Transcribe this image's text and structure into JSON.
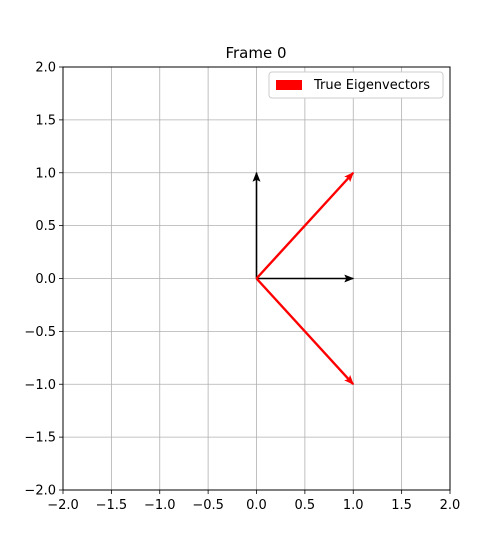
{
  "chart_data": {
    "type": "vector_field",
    "title": "Frame 0",
    "xlabel": "",
    "ylabel": "",
    "xlim": [
      -2.0,
      2.0
    ],
    "ylim": [
      -2.0,
      2.0
    ],
    "xticks": [
      "−2.0",
      "−1.5",
      "−1.0",
      "−0.5",
      "0.0",
      "0.5",
      "1.0",
      "1.5",
      "2.0"
    ],
    "yticks": [
      "−2.0",
      "−1.5",
      "−1.0",
      "−0.5",
      "0.0",
      "0.5",
      "1.0",
      "1.5",
      "2.0"
    ],
    "xtick_values": [
      -2.0,
      -1.5,
      -1.0,
      -0.5,
      0.0,
      0.5,
      1.0,
      1.5,
      2.0
    ],
    "ytick_values": [
      -2.0,
      -1.5,
      -1.0,
      -0.5,
      0.0,
      0.5,
      1.0,
      1.5,
      2.0
    ],
    "grid": true,
    "legend_position": "top-right",
    "series": [
      {
        "name": "",
        "color": "#000000",
        "vectors": [
          {
            "x0": 0,
            "y0": 0,
            "dx": 1.0,
            "dy": 0.0
          },
          {
            "x0": 0,
            "y0": 0,
            "dx": 0.0,
            "dy": 1.0
          }
        ]
      },
      {
        "name": "True Eigenvectors",
        "color": "#ff0000",
        "vectors": [
          {
            "x0": 0,
            "y0": 0,
            "dx": 1.0,
            "dy": 1.0
          },
          {
            "x0": 0,
            "y0": 0,
            "dx": 1.0,
            "dy": -1.0
          }
        ]
      }
    ]
  }
}
